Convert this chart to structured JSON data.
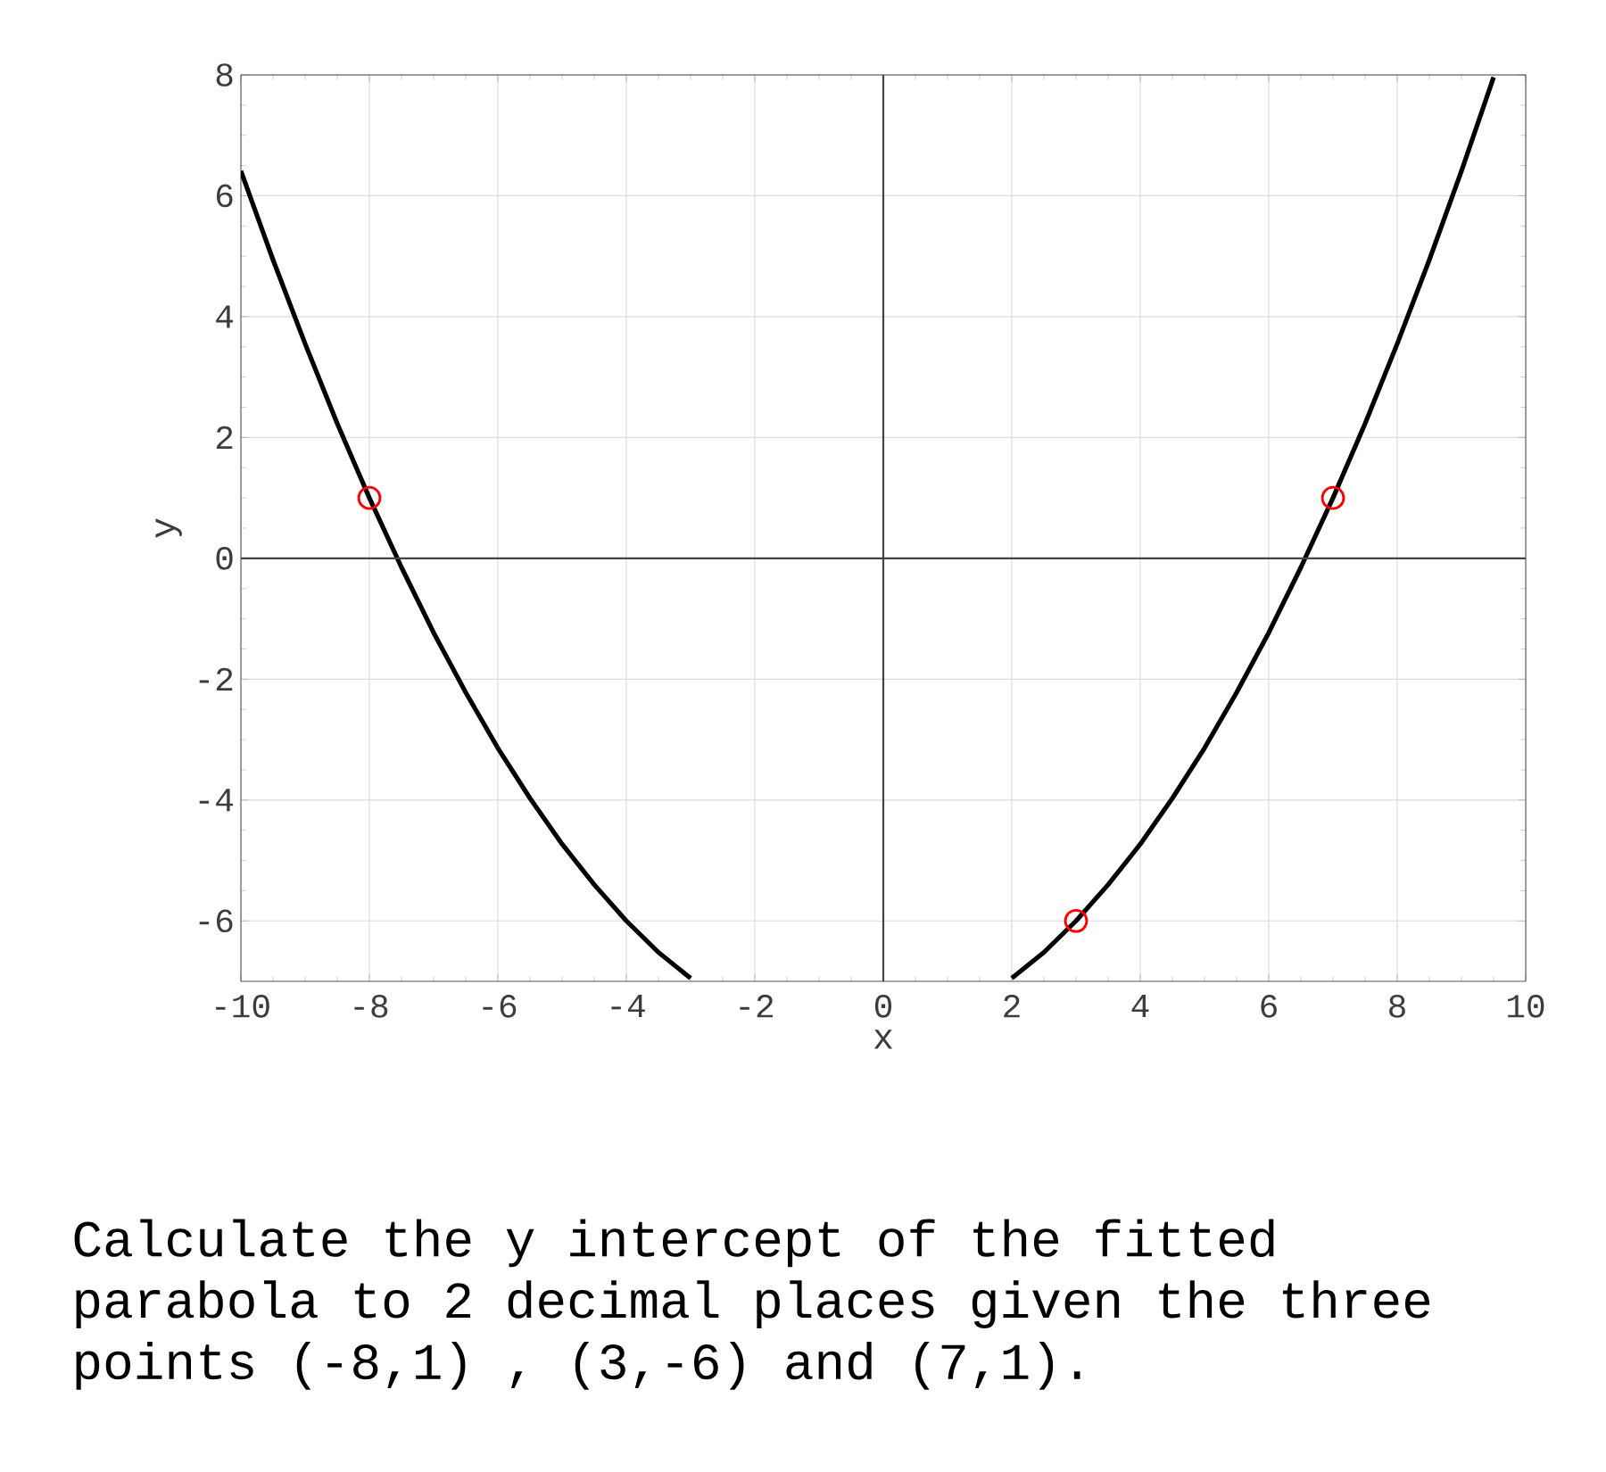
{
  "chart_data": {
    "type": "line",
    "xlabel": "x",
    "ylabel": "y",
    "xlim": [
      -10,
      10
    ],
    "ylim": [
      -7,
      8
    ],
    "xticks": [
      -10,
      -8,
      -6,
      -4,
      -2,
      0,
      2,
      4,
      6,
      8,
      10
    ],
    "yticks": [
      -6,
      -4,
      -2,
      0,
      2,
      4,
      6,
      8
    ],
    "grid": true,
    "series": [
      {
        "color": "#000000",
        "x": [
          -10,
          -9.5,
          -9,
          -8.5,
          -8,
          -7.5,
          -7,
          -6.5,
          -6,
          -5.5,
          -5,
          -4.5,
          -4,
          -3.5,
          -3,
          null,
          2,
          2.5,
          3,
          3.5,
          4,
          4.5,
          5,
          5.5,
          6,
          6.5,
          7,
          7.5,
          8,
          8.5,
          9,
          9.5
        ],
        "values": [
          6.41,
          4.94,
          3.55,
          2.23,
          1,
          -0.15,
          -1.23,
          -2.22,
          -3.14,
          -3.97,
          -4.73,
          -5.4,
          -6.0,
          -6.52,
          -6.95,
          null,
          -6.95,
          -6.52,
          -6,
          -5.4,
          -4.73,
          -3.97,
          -3.14,
          -2.22,
          -1.23,
          -0.15,
          1,
          2.23,
          3.55,
          4.94,
          6.41,
          7.96
        ]
      },
      {
        "type": "scatter",
        "marker": "circle",
        "color": "#ff0000",
        "x": [
          -8,
          3,
          7
        ],
        "values": [
          1,
          -6,
          1
        ]
      }
    ],
    "annotations": [
      "Calculate the y intercept of the fitted parabola to 2 decimal places given the three points (-8,1) , (3,-6) and (7,1)."
    ]
  }
}
